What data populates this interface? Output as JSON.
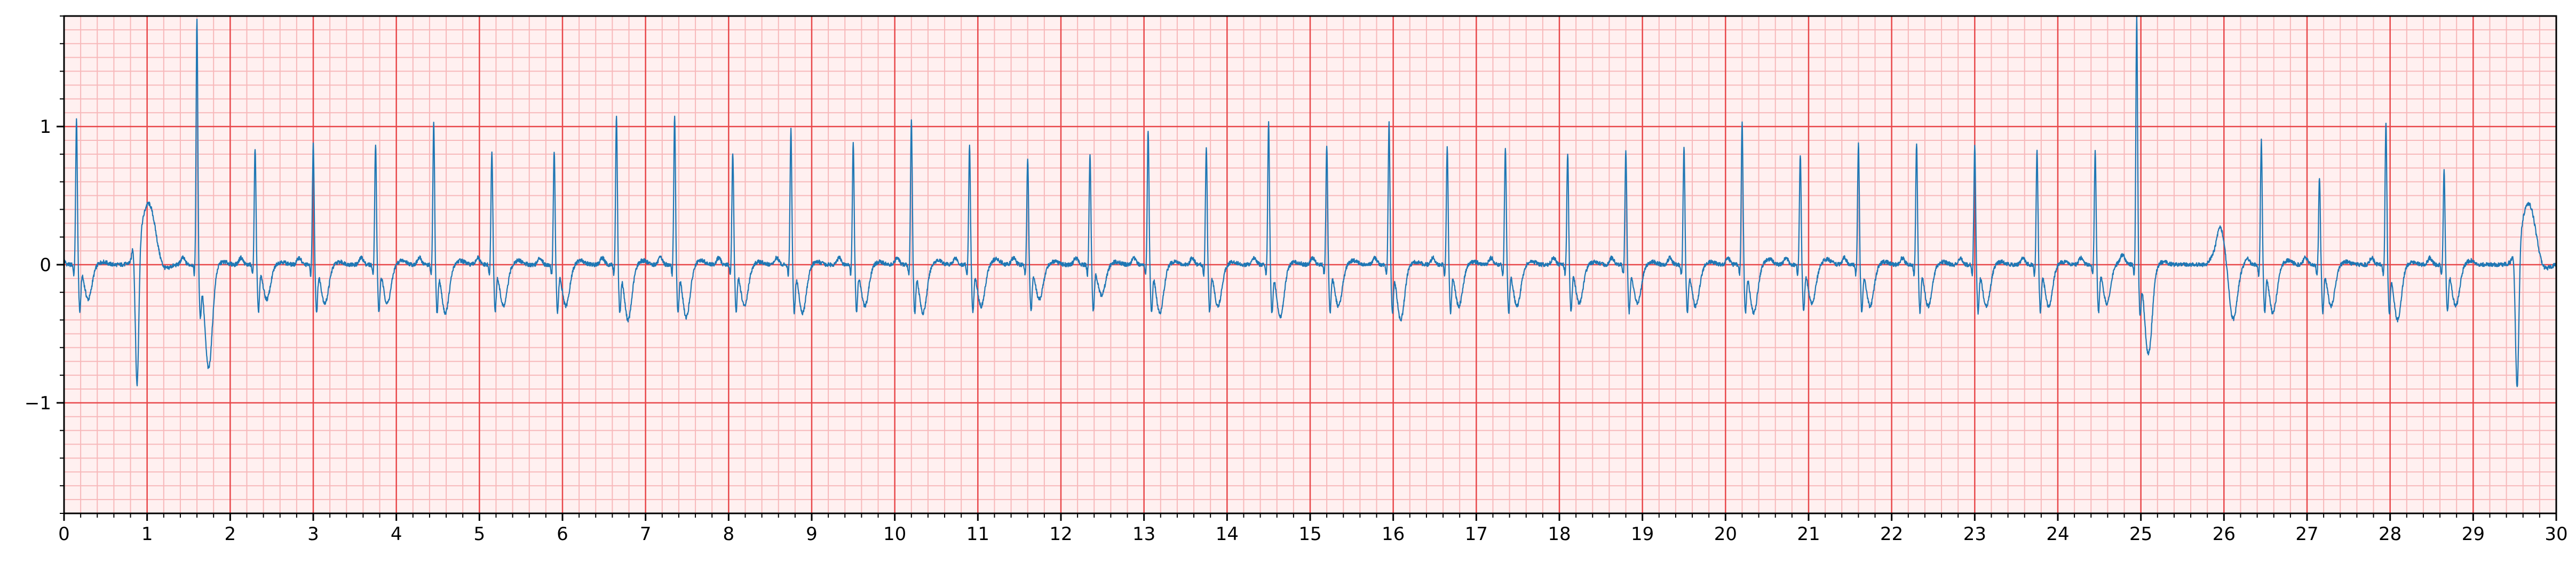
{
  "chart_data": {
    "type": "line",
    "title": "",
    "xlabel": "",
    "ylabel": "",
    "xlim": [
      0,
      30
    ],
    "ylim": [
      -1.8,
      1.8
    ],
    "x_ticks": [
      0,
      1,
      2,
      3,
      4,
      5,
      6,
      7,
      8,
      9,
      10,
      11,
      12,
      13,
      14,
      15,
      16,
      17,
      18,
      19,
      20,
      21,
      22,
      23,
      24,
      25,
      26,
      27,
      28,
      29,
      30
    ],
    "x_tick_labels": [
      "0",
      "1",
      "2",
      "3",
      "4",
      "5",
      "6",
      "7",
      "8",
      "9",
      "10",
      "11",
      "12",
      "13",
      "14",
      "15",
      "16",
      "17",
      "18",
      "19",
      "20",
      "21",
      "22",
      "23",
      "24",
      "25",
      "26",
      "27",
      "28",
      "29",
      "30"
    ],
    "y_ticks": [
      -1,
      0,
      1
    ],
    "y_tick_labels": [
      "−1",
      "0",
      "1"
    ],
    "grid": {
      "major": true,
      "minor": true,
      "major_x_step": 1,
      "major_y_step": 1,
      "minor_x_step": 0.2,
      "minor_y_step": 0.1,
      "major_color": "#e8474a",
      "minor_color": "#f7b8ba",
      "background": "#fff0f0"
    },
    "series": [
      {
        "color": "#1f77b4",
        "beats": [
          {
            "t": 0.15,
            "r": 1.05,
            "s": -0.25,
            "tw": 0.02
          },
          {
            "t": 0.85,
            "r": 0.1,
            "s": -1.0,
            "tw": 0.45,
            "kind": "pvc"
          },
          {
            "t": 1.6,
            "r": 1.78,
            "s": -0.75,
            "tw": 0.02
          },
          {
            "t": 2.3,
            "r": 0.85,
            "s": -0.25,
            "tw": 0.02
          },
          {
            "t": 3.0,
            "r": 0.88,
            "s": -0.28,
            "tw": 0.02
          },
          {
            "t": 3.75,
            "r": 0.88,
            "s": -0.28,
            "tw": 0.03
          },
          {
            "t": 4.45,
            "r": 1.03,
            "s": -0.35,
            "tw": 0.03
          },
          {
            "t": 5.15,
            "r": 0.83,
            "s": -0.3,
            "tw": 0.03
          },
          {
            "t": 5.9,
            "r": 0.83,
            "s": -0.3,
            "tw": 0.03
          },
          {
            "t": 6.65,
            "r": 1.09,
            "s": -0.4,
            "tw": 0.03
          },
          {
            "t": 7.35,
            "r": 1.08,
            "s": -0.38,
            "tw": 0.03
          },
          {
            "t": 8.05,
            "r": 0.82,
            "s": -0.3,
            "tw": 0.02
          },
          {
            "t": 8.75,
            "r": 0.98,
            "s": -0.35,
            "tw": 0.02
          },
          {
            "t": 9.5,
            "r": 0.88,
            "s": -0.3,
            "tw": 0.02
          },
          {
            "t": 10.2,
            "r": 1.05,
            "s": -0.35,
            "tw": 0.03
          },
          {
            "t": 10.9,
            "r": 0.86,
            "s": -0.3,
            "tw": 0.04
          },
          {
            "t": 11.6,
            "r": 0.78,
            "s": -0.25,
            "tw": 0.02
          },
          {
            "t": 12.35,
            "r": 0.8,
            "s": -0.22,
            "tw": 0.02
          },
          {
            "t": 13.05,
            "r": 0.98,
            "s": -0.35,
            "tw": 0.02
          },
          {
            "t": 13.75,
            "r": 0.86,
            "s": -0.3,
            "tw": 0.02
          },
          {
            "t": 14.5,
            "r": 1.03,
            "s": -0.38,
            "tw": 0.02
          },
          {
            "t": 15.2,
            "r": 0.86,
            "s": -0.3,
            "tw": 0.03
          },
          {
            "t": 15.95,
            "r": 1.03,
            "s": -0.4,
            "tw": 0.02
          },
          {
            "t": 16.65,
            "r": 0.85,
            "s": -0.3,
            "tw": 0.02
          },
          {
            "t": 17.35,
            "r": 0.86,
            "s": -0.3,
            "tw": 0.02
          },
          {
            "t": 18.1,
            "r": 0.81,
            "s": -0.28,
            "tw": 0.02
          },
          {
            "t": 18.8,
            "r": 0.83,
            "s": -0.28,
            "tw": 0.02
          },
          {
            "t": 19.5,
            "r": 0.86,
            "s": -0.3,
            "tw": 0.02
          },
          {
            "t": 20.2,
            "r": 1.03,
            "s": -0.35,
            "tw": 0.04
          },
          {
            "t": 20.9,
            "r": 0.8,
            "s": -0.28,
            "tw": 0.04
          },
          {
            "t": 21.6,
            "r": 0.88,
            "s": -0.3,
            "tw": 0.02
          },
          {
            "t": 22.3,
            "r": 0.88,
            "s": -0.3,
            "tw": 0.02
          },
          {
            "t": 23.0,
            "r": 0.86,
            "s": -0.3,
            "tw": 0.02
          },
          {
            "t": 23.75,
            "r": 0.83,
            "s": -0.3,
            "tw": 0.02
          },
          {
            "t": 24.45,
            "r": 0.83,
            "s": -0.28,
            "tw": 0.02
          },
          {
            "t": 24.95,
            "r": 1.8,
            "s": -0.65,
            "tw": 0.02
          },
          {
            "t": 25.95,
            "r": 0.05,
            "s": -0.4,
            "tw": 0.28,
            "kind": "pvc_up"
          },
          {
            "t": 26.45,
            "r": 0.9,
            "s": -0.35,
            "tw": 0.03
          },
          {
            "t": 27.15,
            "r": 0.64,
            "s": -0.3,
            "tw": 0.02
          },
          {
            "t": 27.95,
            "r": 1.04,
            "s": -0.4,
            "tw": 0.02
          },
          {
            "t": 28.65,
            "r": 0.68,
            "s": -0.3,
            "tw": 0.03
          },
          {
            "t": 29.5,
            "r": 0.05,
            "s": -1.02,
            "tw": 0.45,
            "kind": "pvc"
          }
        ]
      }
    ]
  }
}
